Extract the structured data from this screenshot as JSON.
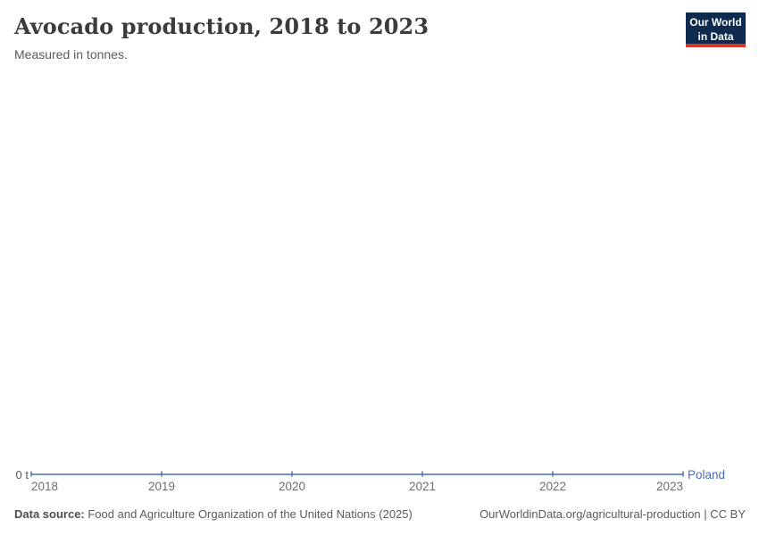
{
  "header": {
    "title": "Avocado production, 2018 to 2023",
    "subtitle": "Measured in tonnes.",
    "logo": {
      "line1": "Our World",
      "line2": "in Data"
    }
  },
  "chart_data": {
    "type": "line",
    "x": [
      2018,
      2019,
      2020,
      2021,
      2022,
      2023
    ],
    "x_tick_labels": [
      "2018",
      "2019",
      "2020",
      "2021",
      "2022",
      "2023"
    ],
    "series": [
      {
        "name": "Poland",
        "values": [
          0,
          0,
          0,
          0,
          0,
          0
        ]
      }
    ],
    "unit": "tonnes",
    "y_axis": {
      "tick_label": "0 t",
      "min": 0
    },
    "grid": false,
    "legend_position": "end-of-line"
  },
  "colors": {
    "line": "#4a6db3",
    "entity_label": "#4a6db3",
    "logo_bg": "#0e2a4e",
    "logo_underline": "#dc352a"
  },
  "footer": {
    "source_prefix": "Data source:",
    "source_text": " Food and Agriculture Organization of the United Nations (2025)",
    "link_text": "OurWorldinData.org/agricultural-production | CC BY"
  }
}
